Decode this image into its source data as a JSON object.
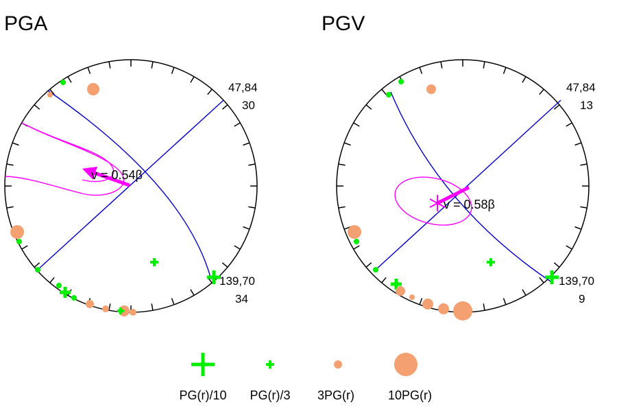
{
  "colors": {
    "circle": "#000000",
    "plane": "#0000cc",
    "contour": "#ff00ff",
    "minus": "#00ee00",
    "plus": "#f4a070"
  },
  "panels": [
    {
      "title": "PGA",
      "plane1_label": "47,84",
      "plane1_value": "30",
      "plane2_label": "139,70",
      "plane2_value": "34",
      "velocity_label": "v = 0.54β"
    },
    {
      "title": "PGV",
      "plane1_label": "47,84",
      "plane1_value": "13",
      "plane2_label": "139,70",
      "plane2_value": "9",
      "velocity_label": "v = 0.58β"
    }
  ],
  "legend": [
    {
      "label": "PG(r)/10",
      "symbol": "cross",
      "size": "large"
    },
    {
      "label": "PG(r)/3",
      "symbol": "cross",
      "size": "small"
    },
    {
      "label": "3PG(r)",
      "symbol": "dot",
      "size": "small"
    },
    {
      "label": "10PG(r)",
      "symbol": "dot",
      "size": "large"
    }
  ]
}
